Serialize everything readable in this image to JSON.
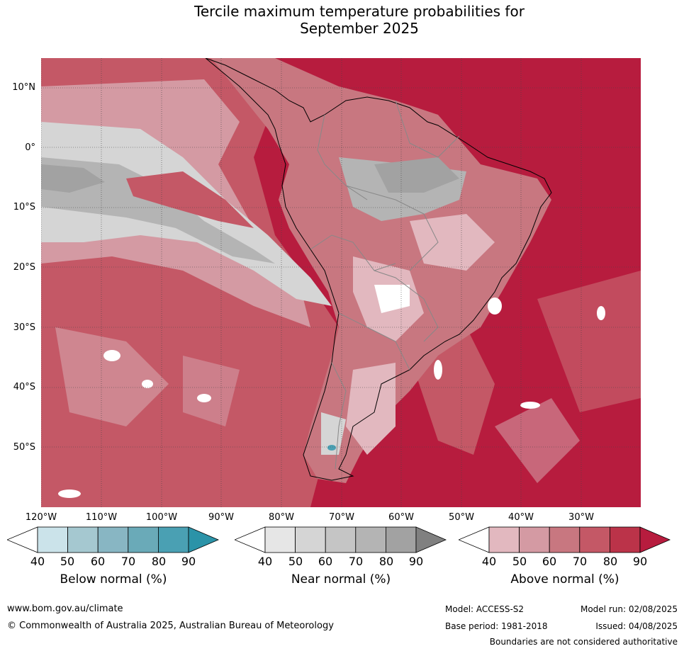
{
  "title_line1": "Tercile maximum temperature probabilities for",
  "title_line2": "September 2025",
  "lat_labels": [
    "10°N",
    "0°",
    "10°S",
    "20°S",
    "30°S",
    "40°S",
    "50°S"
  ],
  "lon_labels": [
    "120°W",
    "110°W",
    "100°W",
    "90°W",
    "80°W",
    "70°W",
    "60°W",
    "50°W",
    "40°W",
    "30°W"
  ],
  "colorbars": [
    {
      "title": "Below normal (%)",
      "ticks": [
        "40",
        "50",
        "60",
        "70",
        "80",
        "90"
      ],
      "colors": [
        "#ffffff",
        "#cbe3ea",
        "#a5c8d0",
        "#88b6c3",
        "#6aaab8",
        "#4aa0b3",
        "#2b93a8"
      ]
    },
    {
      "title": "Near normal (%)",
      "ticks": [
        "40",
        "50",
        "60",
        "70",
        "80",
        "90"
      ],
      "colors": [
        "#ffffff",
        "#e6e6e6",
        "#d5d5d5",
        "#c5c5c5",
        "#b4b4b4",
        "#a2a2a2",
        "#808080"
      ]
    },
    {
      "title": "Above normal (%)",
      "ticks": [
        "40",
        "50",
        "60",
        "70",
        "80",
        "90"
      ],
      "colors": [
        "#ffffff",
        "#e2b8bf",
        "#d49aa3",
        "#c87780",
        "#c45866",
        "#bb3349",
        "#b71c3e"
      ]
    }
  ],
  "footer": {
    "website": "www.bom.gov.au/climate",
    "copyright": "© Commonwealth of Australia 2025, Australian Bureau of Meteorology",
    "model": "Model: ACCESS-S2",
    "model_run": "Model run: 02/08/2025",
    "base_period": "Base period: 1981-2018",
    "issued": "Issued: 04/08/2025",
    "boundaries": "Boundaries are not considered authoritative"
  }
}
